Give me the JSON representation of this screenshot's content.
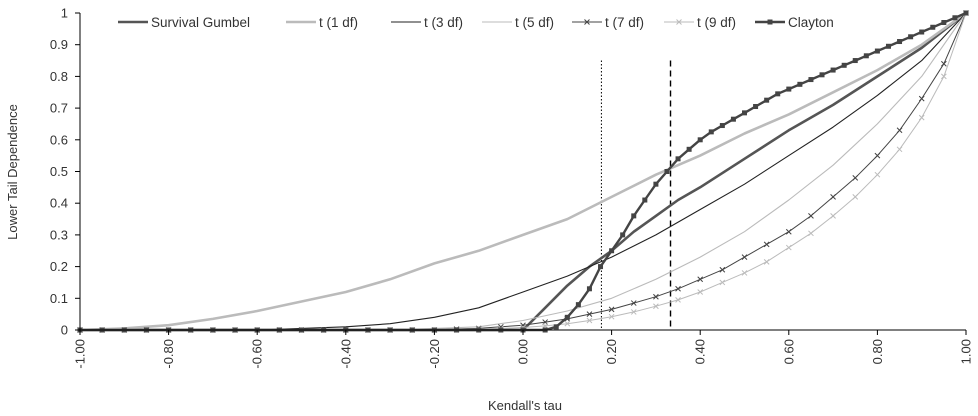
{
  "chart_data": {
    "type": "line",
    "xlabel": "Kendall's tau",
    "ylabel": "Lower Tail Dependence",
    "xlim": [
      -1,
      1
    ],
    "ylim": [
      0,
      1
    ],
    "x_ticks": [
      "-1.00",
      "-0.80",
      "-0.60",
      "-0.40",
      "-0.20",
      "0.00",
      "0.20",
      "0.40",
      "0.60",
      "0.80",
      "1.00"
    ],
    "y_ticks": [
      "0",
      "0.1",
      "0.2",
      "0.3",
      "0.4",
      "0.5",
      "0.6",
      "0.7",
      "0.8",
      "0.9",
      "1"
    ],
    "grid": false,
    "legend_position": "top",
    "reference_lines": [
      {
        "x": 0.177,
        "style": "dotted"
      },
      {
        "x": 0.333,
        "style": "dashed"
      }
    ],
    "series": [
      {
        "name": "Survival Gumbel",
        "color": "#555555",
        "marker": "none",
        "points": [
          [
            -1,
            0
          ],
          [
            0,
            0
          ],
          [
            0.05,
            0.07
          ],
          [
            0.1,
            0.14
          ],
          [
            0.15,
            0.2
          ],
          [
            0.2,
            0.25
          ],
          [
            0.25,
            0.31
          ],
          [
            0.3,
            0.36
          ],
          [
            0.35,
            0.41
          ],
          [
            0.4,
            0.45
          ],
          [
            0.5,
            0.54
          ],
          [
            0.6,
            0.63
          ],
          [
            0.7,
            0.71
          ],
          [
            0.8,
            0.8
          ],
          [
            0.9,
            0.89
          ],
          [
            1,
            1
          ]
        ]
      },
      {
        "name": "t (1 df)",
        "color": "#bbbbbb",
        "marker": "none",
        "points": [
          [
            -1,
            0
          ],
          [
            -0.9,
            0.005
          ],
          [
            -0.8,
            0.015
          ],
          [
            -0.7,
            0.035
          ],
          [
            -0.6,
            0.06
          ],
          [
            -0.5,
            0.09
          ],
          [
            -0.4,
            0.12
          ],
          [
            -0.3,
            0.16
          ],
          [
            -0.2,
            0.21
          ],
          [
            -0.1,
            0.25
          ],
          [
            0,
            0.3
          ],
          [
            0.1,
            0.35
          ],
          [
            0.2,
            0.42
          ],
          [
            0.3,
            0.49
          ],
          [
            0.4,
            0.55
          ],
          [
            0.5,
            0.62
          ],
          [
            0.6,
            0.68
          ],
          [
            0.7,
            0.75
          ],
          [
            0.8,
            0.82
          ],
          [
            0.9,
            0.9
          ],
          [
            1,
            1
          ]
        ]
      },
      {
        "name": "t (3 df)",
        "color": "#222222",
        "marker": "none",
        "points": [
          [
            -1,
            0
          ],
          [
            -0.6,
            0
          ],
          [
            -0.4,
            0.01
          ],
          [
            -0.3,
            0.02
          ],
          [
            -0.2,
            0.04
          ],
          [
            -0.1,
            0.07
          ],
          [
            0,
            0.12
          ],
          [
            0.1,
            0.17
          ],
          [
            0.2,
            0.23
          ],
          [
            0.3,
            0.3
          ],
          [
            0.4,
            0.38
          ],
          [
            0.5,
            0.46
          ],
          [
            0.6,
            0.55
          ],
          [
            0.7,
            0.64
          ],
          [
            0.8,
            0.74
          ],
          [
            0.9,
            0.85
          ],
          [
            1,
            1
          ]
        ]
      },
      {
        "name": "t (5 df)",
        "color": "#bbbbbb",
        "marker": "none",
        "points": [
          [
            -1,
            0
          ],
          [
            -0.3,
            0
          ],
          [
            -0.2,
            0.005
          ],
          [
            -0.1,
            0.01
          ],
          [
            0,
            0.03
          ],
          [
            0.1,
            0.06
          ],
          [
            0.2,
            0.1
          ],
          [
            0.3,
            0.16
          ],
          [
            0.4,
            0.23
          ],
          [
            0.5,
            0.31
          ],
          [
            0.6,
            0.41
          ],
          [
            0.7,
            0.52
          ],
          [
            0.8,
            0.65
          ],
          [
            0.9,
            0.8
          ],
          [
            1,
            1
          ]
        ]
      },
      {
        "name": "t (7 df)",
        "color": "#444444",
        "marker": "x",
        "points": [
          [
            -1,
            0
          ],
          [
            -0.95,
            0
          ],
          [
            -0.9,
            0
          ],
          [
            -0.85,
            0
          ],
          [
            -0.8,
            0
          ],
          [
            -0.75,
            0
          ],
          [
            -0.7,
            0
          ],
          [
            -0.65,
            0
          ],
          [
            -0.6,
            0
          ],
          [
            -0.55,
            0
          ],
          [
            -0.5,
            0
          ],
          [
            -0.45,
            0
          ],
          [
            -0.4,
            0
          ],
          [
            -0.35,
            0
          ],
          [
            -0.3,
            0
          ],
          [
            -0.25,
            0
          ],
          [
            -0.2,
            0
          ],
          [
            -0.15,
            0.003
          ],
          [
            -0.1,
            0.005
          ],
          [
            -0.05,
            0.01
          ],
          [
            0,
            0.015
          ],
          [
            0.05,
            0.025
          ],
          [
            0.1,
            0.035
          ],
          [
            0.15,
            0.05
          ],
          [
            0.2,
            0.065
          ],
          [
            0.25,
            0.085
          ],
          [
            0.3,
            0.105
          ],
          [
            0.35,
            0.13
          ],
          [
            0.4,
            0.16
          ],
          [
            0.45,
            0.19
          ],
          [
            0.5,
            0.23
          ],
          [
            0.55,
            0.27
          ],
          [
            0.6,
            0.31
          ],
          [
            0.65,
            0.36
          ],
          [
            0.7,
            0.42
          ],
          [
            0.75,
            0.48
          ],
          [
            0.8,
            0.55
          ],
          [
            0.85,
            0.63
          ],
          [
            0.9,
            0.73
          ],
          [
            0.95,
            0.84
          ],
          [
            1,
            1
          ]
        ]
      },
      {
        "name": "t (9 df)",
        "color": "#bbbbbb",
        "marker": "x",
        "points": [
          [
            -1,
            0
          ],
          [
            -0.95,
            0
          ],
          [
            -0.9,
            0
          ],
          [
            -0.85,
            0
          ],
          [
            -0.8,
            0
          ],
          [
            -0.75,
            0
          ],
          [
            -0.7,
            0
          ],
          [
            -0.65,
            0
          ],
          [
            -0.6,
            0
          ],
          [
            -0.55,
            0
          ],
          [
            -0.5,
            0
          ],
          [
            -0.45,
            0
          ],
          [
            -0.4,
            0
          ],
          [
            -0.35,
            0
          ],
          [
            -0.3,
            0
          ],
          [
            -0.25,
            0
          ],
          [
            -0.2,
            0
          ],
          [
            -0.15,
            0
          ],
          [
            -0.1,
            0.003
          ],
          [
            -0.05,
            0.005
          ],
          [
            0,
            0.008
          ],
          [
            0.05,
            0.013
          ],
          [
            0.1,
            0.02
          ],
          [
            0.15,
            0.03
          ],
          [
            0.2,
            0.042
          ],
          [
            0.25,
            0.057
          ],
          [
            0.3,
            0.075
          ],
          [
            0.35,
            0.095
          ],
          [
            0.4,
            0.12
          ],
          [
            0.45,
            0.15
          ],
          [
            0.5,
            0.18
          ],
          [
            0.55,
            0.215
          ],
          [
            0.6,
            0.26
          ],
          [
            0.65,
            0.305
          ],
          [
            0.7,
            0.36
          ],
          [
            0.75,
            0.42
          ],
          [
            0.8,
            0.49
          ],
          [
            0.85,
            0.57
          ],
          [
            0.9,
            0.67
          ],
          [
            0.95,
            0.8
          ],
          [
            1,
            1
          ]
        ]
      },
      {
        "name": "Clayton",
        "color": "#444444",
        "marker": "square",
        "points": [
          [
            -1,
            0
          ],
          [
            -0.95,
            0
          ],
          [
            -0.9,
            0
          ],
          [
            -0.85,
            0
          ],
          [
            -0.8,
            0
          ],
          [
            -0.75,
            0
          ],
          [
            -0.7,
            0
          ],
          [
            -0.65,
            0
          ],
          [
            -0.6,
            0
          ],
          [
            -0.55,
            0
          ],
          [
            -0.5,
            0
          ],
          [
            -0.45,
            0
          ],
          [
            -0.4,
            0
          ],
          [
            -0.35,
            0
          ],
          [
            -0.3,
            0
          ],
          [
            -0.25,
            0
          ],
          [
            -0.2,
            0
          ],
          [
            -0.15,
            0
          ],
          [
            -0.1,
            0
          ],
          [
            -0.05,
            0
          ],
          [
            0,
            0
          ],
          [
            0.05,
            0
          ],
          [
            0.075,
            0.01
          ],
          [
            0.1,
            0.04
          ],
          [
            0.125,
            0.08
          ],
          [
            0.15,
            0.13
          ],
          [
            0.175,
            0.2
          ],
          [
            0.2,
            0.25
          ],
          [
            0.225,
            0.3
          ],
          [
            0.25,
            0.36
          ],
          [
            0.275,
            0.41
          ],
          [
            0.3,
            0.46
          ],
          [
            0.325,
            0.5
          ],
          [
            0.35,
            0.54
          ],
          [
            0.375,
            0.57
          ],
          [
            0.4,
            0.6
          ],
          [
            0.425,
            0.625
          ],
          [
            0.45,
            0.645
          ],
          [
            0.475,
            0.665
          ],
          [
            0.5,
            0.685
          ],
          [
            0.525,
            0.705
          ],
          [
            0.55,
            0.725
          ],
          [
            0.575,
            0.745
          ],
          [
            0.6,
            0.76
          ],
          [
            0.625,
            0.775
          ],
          [
            0.65,
            0.79
          ],
          [
            0.675,
            0.805
          ],
          [
            0.7,
            0.82
          ],
          [
            0.725,
            0.835
          ],
          [
            0.75,
            0.85
          ],
          [
            0.775,
            0.865
          ],
          [
            0.8,
            0.88
          ],
          [
            0.825,
            0.895
          ],
          [
            0.85,
            0.91
          ],
          [
            0.875,
            0.925
          ],
          [
            0.9,
            0.94
          ],
          [
            0.925,
            0.955
          ],
          [
            0.95,
            0.97
          ],
          [
            0.975,
            0.985
          ],
          [
            1,
            1
          ]
        ]
      }
    ]
  }
}
